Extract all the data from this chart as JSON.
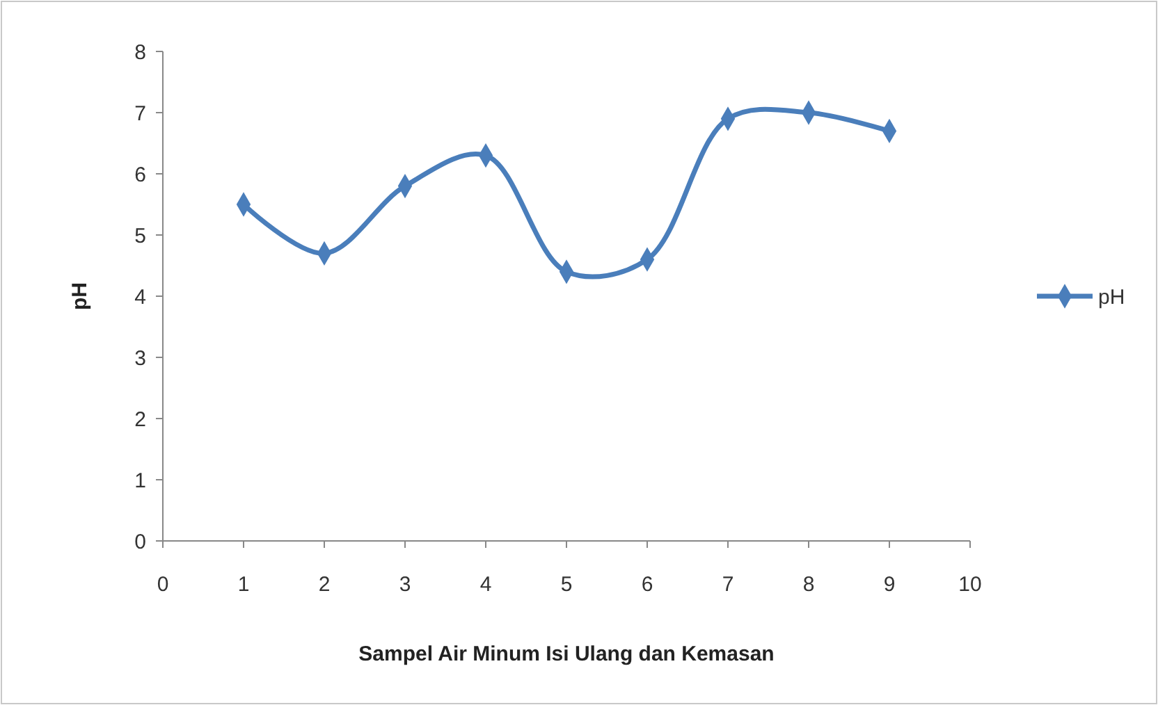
{
  "chart_data": {
    "type": "line",
    "xlabel": "Sampel Air Minum Isi Ulang dan Kemasan",
    "ylabel": "pH",
    "x": [
      1,
      2,
      3,
      4,
      5,
      6,
      7,
      8,
      9
    ],
    "series": [
      {
        "name": "pH",
        "color": "#4a7ebb",
        "values": [
          5.5,
          4.7,
          5.8,
          6.3,
          4.4,
          4.6,
          6.9,
          7.0,
          6.7
        ]
      }
    ],
    "xlim": [
      0,
      10
    ],
    "xticks": [
      0,
      1,
      2,
      3,
      4,
      5,
      6,
      7,
      8,
      9,
      10
    ],
    "ylim": [
      0,
      8
    ],
    "yticks": [
      0,
      1,
      2,
      3,
      4,
      5,
      6,
      7,
      8
    ],
    "grid": false,
    "legend": "right",
    "marker": "diamond",
    "line_style": "solid"
  }
}
